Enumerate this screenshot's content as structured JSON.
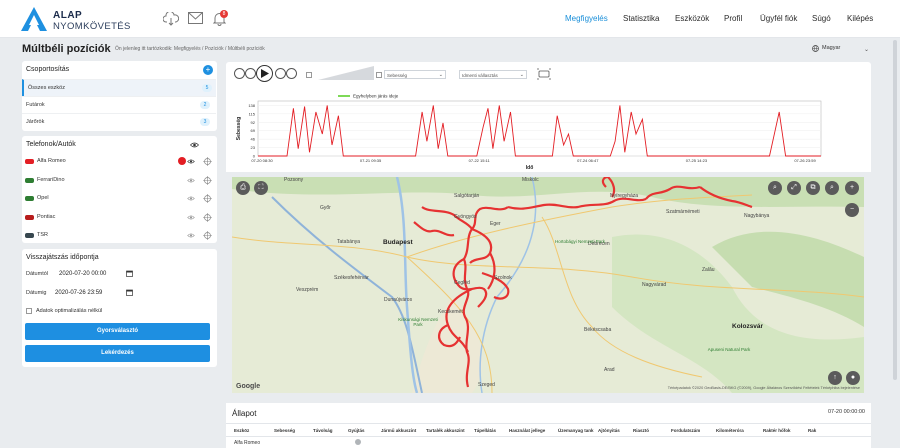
{
  "app": {
    "logo_line1": "ALAP",
    "logo_line2": "NYOMKÖVETÉS",
    "notification_count": "8"
  },
  "nav": [
    "Megfigyelés",
    "Statisztika",
    "Eszközök",
    "Profil",
    "Ügyfél fiók",
    "Súgó",
    "Kilépés"
  ],
  "nav_active": "Megfigyelés",
  "page": {
    "title": "Múltbéli pozíciók",
    "breadcrumb": "Ön jelenleg itt tartózkodik: Megfigyelés / Pozíciók / Múltbéli pozíciók",
    "language": "Magyar"
  },
  "groups": {
    "title": "Csoportosítás",
    "items": [
      {
        "label": "Összes eszköz",
        "count": "5"
      },
      {
        "label": "Futárok",
        "count": "2"
      },
      {
        "label": "Járőrök",
        "count": "3"
      }
    ]
  },
  "devices": {
    "title": "Telefonok/Autók",
    "items": [
      {
        "name": "Alfa Romeo",
        "color": "#e31e24"
      },
      {
        "name": "FerrariDino",
        "color": "#2e7d32"
      },
      {
        "name": "Opel",
        "color": "#2e7d32"
      },
      {
        "name": "Pontiac",
        "color": "#b71c1c"
      },
      {
        "name": "TSR",
        "color": "#37474f"
      }
    ]
  },
  "playback": {
    "title": "Visszajátszás időpontja",
    "from_label": "Dátumtól",
    "from_value": "2020-07-20 00:00",
    "to_label": "Dátumig",
    "to_value": "2020-07-26 23:59",
    "checkbox_label": "Adatok optimalizálás nélkül",
    "quick_button": "Gyorsválasztó",
    "query_button": "Lekérdezés"
  },
  "controls": {
    "select1": "Sebesség",
    "select2": "Idmenti vállasztás"
  },
  "chart_data": {
    "type": "line",
    "legend": [
      "Egyhelyben járás ideje"
    ],
    "ylabel": "Sebesség",
    "xlabel": "Idő",
    "yticks": [
      "0",
      "23",
      "46",
      "69",
      "92",
      "115",
      "138"
    ],
    "xticks": [
      "07-20 08:30",
      "07-21 09:35",
      "07-22 15:11",
      "07-24 06:47",
      "07-25 14:23",
      "07-26 23:59"
    ],
    "ylim": [
      0,
      150
    ],
    "series": [
      {
        "values": [
          [
            0,
            0
          ],
          [
            0.5,
            0
          ],
          [
            1.0,
            0
          ],
          [
            1.8,
            0
          ],
          [
            2.2,
            130
          ],
          [
            2.5,
            20
          ],
          [
            2.9,
            135
          ],
          [
            3.2,
            10
          ],
          [
            3.6,
            120
          ],
          [
            4.0,
            60
          ],
          [
            4.3,
            138
          ],
          [
            4.6,
            30
          ],
          [
            5.0,
            110
          ],
          [
            5.3,
            0
          ],
          [
            6.0,
            0
          ],
          [
            7.0,
            0
          ],
          [
            8.5,
            0
          ],
          [
            9.8,
            0
          ],
          [
            10.2,
            120
          ],
          [
            10.5,
            40
          ],
          [
            10.9,
            138
          ],
          [
            11.2,
            20
          ],
          [
            11.5,
            90
          ],
          [
            11.8,
            0
          ],
          [
            12.5,
            0
          ],
          [
            13.6,
            0
          ],
          [
            14.0,
            80
          ],
          [
            14.3,
            130
          ],
          [
            14.6,
            20
          ],
          [
            15.0,
            138
          ],
          [
            15.3,
            40
          ],
          [
            15.7,
            120
          ],
          [
            16.0,
            0
          ],
          [
            17.5,
            0
          ],
          [
            18.3,
            0
          ],
          [
            18.6,
            110
          ],
          [
            19.0,
            30
          ],
          [
            19.3,
            60
          ],
          [
            19.6,
            0
          ],
          [
            20.5,
            0
          ],
          [
            21.5,
            0
          ],
          [
            21.9,
            0
          ],
          [
            22.2,
            40
          ],
          [
            22.5,
            138
          ],
          [
            22.8,
            10
          ],
          [
            23.2,
            120
          ],
          [
            23.5,
            60
          ],
          [
            23.9,
            100
          ],
          [
            24.2,
            0
          ],
          [
            26.0,
            0
          ],
          [
            28.0,
            0
          ],
          [
            30.0,
            0
          ],
          [
            31.8,
            0
          ],
          [
            32.4,
            120
          ],
          [
            32.8,
            0
          ],
          [
            33.5,
            0
          ],
          [
            35.0,
            0
          ]
        ]
      }
    ]
  },
  "map": {
    "cities": [
      "Pozsony",
      "Budapest",
      "Győr",
      "Tatabánya",
      "Gyöngyös",
      "Miskolc",
      "Nyíregyháza",
      "Debrecen",
      "Szolnok",
      "Kecskemét",
      "Cegléd",
      "Szeged",
      "Székesfehérvár",
      "Kolozsvár",
      "Nagyvárad",
      "Szatmárnémeti",
      "Nagybánya",
      "Salgótarján",
      "Eger",
      "Veszprém",
      "Dunaújváros",
      "Békéscsaba",
      "Arad",
      "Zalău"
    ],
    "parks": [
      "Hortobágyi Nemzeti Park",
      "Kiskunsági Nemzeti Park",
      "Apuseni Natural Park"
    ],
    "attribution": "Térképadatok ©2020 GeoBasis-DE/BKG (©2009), Google   Általános Szerződési Feltételek   Térképhiba bejelentése",
    "google": "Google"
  },
  "status": {
    "title": "Állapot",
    "time": "07-20 00:00:00",
    "columns": [
      "Eszköz",
      "Sebesség",
      "Távolság",
      "Gyújtás",
      "Jármű akkuszint",
      "Tartalék akkuszint",
      "Tápellátás",
      "Használat jellege",
      "Üzemanyag tank",
      "Ajtónyitás",
      "Riasztó",
      "Fordulatszám",
      "Kilométeróra",
      "Raktér hőfok",
      "Rak"
    ],
    "row": {
      "device": "Alfa Romeo"
    }
  }
}
